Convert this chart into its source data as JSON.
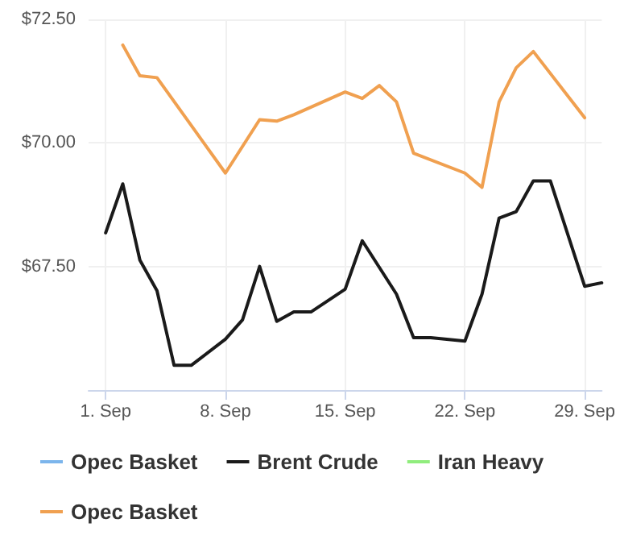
{
  "chart_data": {
    "type": "line",
    "x": [
      "--09-01",
      "--09-02",
      "--09-03",
      "--09-04",
      "--09-05",
      "--09-06",
      "--09-08",
      "--09-09",
      "--09-10",
      "--09-11",
      "--09-12",
      "--09-13",
      "--09-15",
      "--09-16",
      "--09-18",
      "--09-19",
      "--09-20",
      "--09-22",
      "--09-23",
      "--09-24",
      "--09-25",
      "--09-26",
      "--09-27",
      "--09-29",
      "--09-30"
    ],
    "series": [
      {
        "name": "Opec Basket",
        "color": "#7cb5ec",
        "values": [
          null,
          null,
          null,
          null,
          null,
          null,
          null,
          null,
          null,
          null,
          null,
          null,
          null,
          null,
          null,
          null,
          null,
          null,
          null,
          null,
          null,
          null,
          null,
          null,
          null
        ]
      },
      {
        "name": "Brent Crude",
        "color": "#1a1a1a",
        "values": [
          68.18,
          69.17,
          67.63,
          67.01,
          65.5,
          65.5,
          66.03,
          66.42,
          67.5,
          66.39,
          66.58,
          66.58,
          67.04,
          68.02,
          66.94,
          66.06,
          66.06,
          65.99,
          66.94,
          68.48,
          68.61,
          69.23,
          69.23,
          67.1,
          67.17
        ]
      },
      {
        "name": "Iran Heavy",
        "color": "#90ed7d",
        "values": [
          null,
          null,
          null,
          null,
          null,
          null,
          null,
          null,
          null,
          null,
          null,
          null,
          null,
          null,
          null,
          null,
          null,
          null,
          null,
          null,
          null,
          null,
          null,
          null,
          null
        ]
      },
      {
        "name": "Opec Basket",
        "color": "#f0a050",
        "x": [
          "--09-02",
          "--09-03",
          "--09-04",
          "--09-08",
          "--09-10",
          "--09-11",
          "--09-12",
          "--09-15",
          "--09-16",
          "--09-17",
          "--09-18",
          "--09-19",
          "--09-22",
          "--09-23",
          "--09-24",
          "--09-25",
          "--09-26",
          "--09-29"
        ],
        "values": [
          71.98,
          71.36,
          71.32,
          69.39,
          70.47,
          70.44,
          70.57,
          71.03,
          70.9,
          71.16,
          70.83,
          69.79,
          69.39,
          69.1,
          70.83,
          71.52,
          71.85,
          70.51
        ]
      }
    ],
    "xlim": [
      "--08-31",
      "--09-30"
    ],
    "xticks": [
      {
        "value": "--09-01",
        "label": "1. Sep"
      },
      {
        "value": "--09-08",
        "label": "8. Sep"
      },
      {
        "value": "--09-15",
        "label": "15. Sep"
      },
      {
        "value": "--09-22",
        "label": "22. Sep"
      },
      {
        "value": "--09-29",
        "label": "29. Sep"
      }
    ],
    "ylim": [
      65,
      72.5
    ],
    "yticks": [
      {
        "value": 65,
        "label": null
      },
      {
        "value": 67.5,
        "label": "$67.50"
      },
      {
        "value": 70,
        "label": "$70.00"
      },
      {
        "value": 72.5,
        "label": "$72.50"
      }
    ],
    "grid": true,
    "legend": "bottom",
    "marker": "none",
    "line_style": "solid"
  }
}
